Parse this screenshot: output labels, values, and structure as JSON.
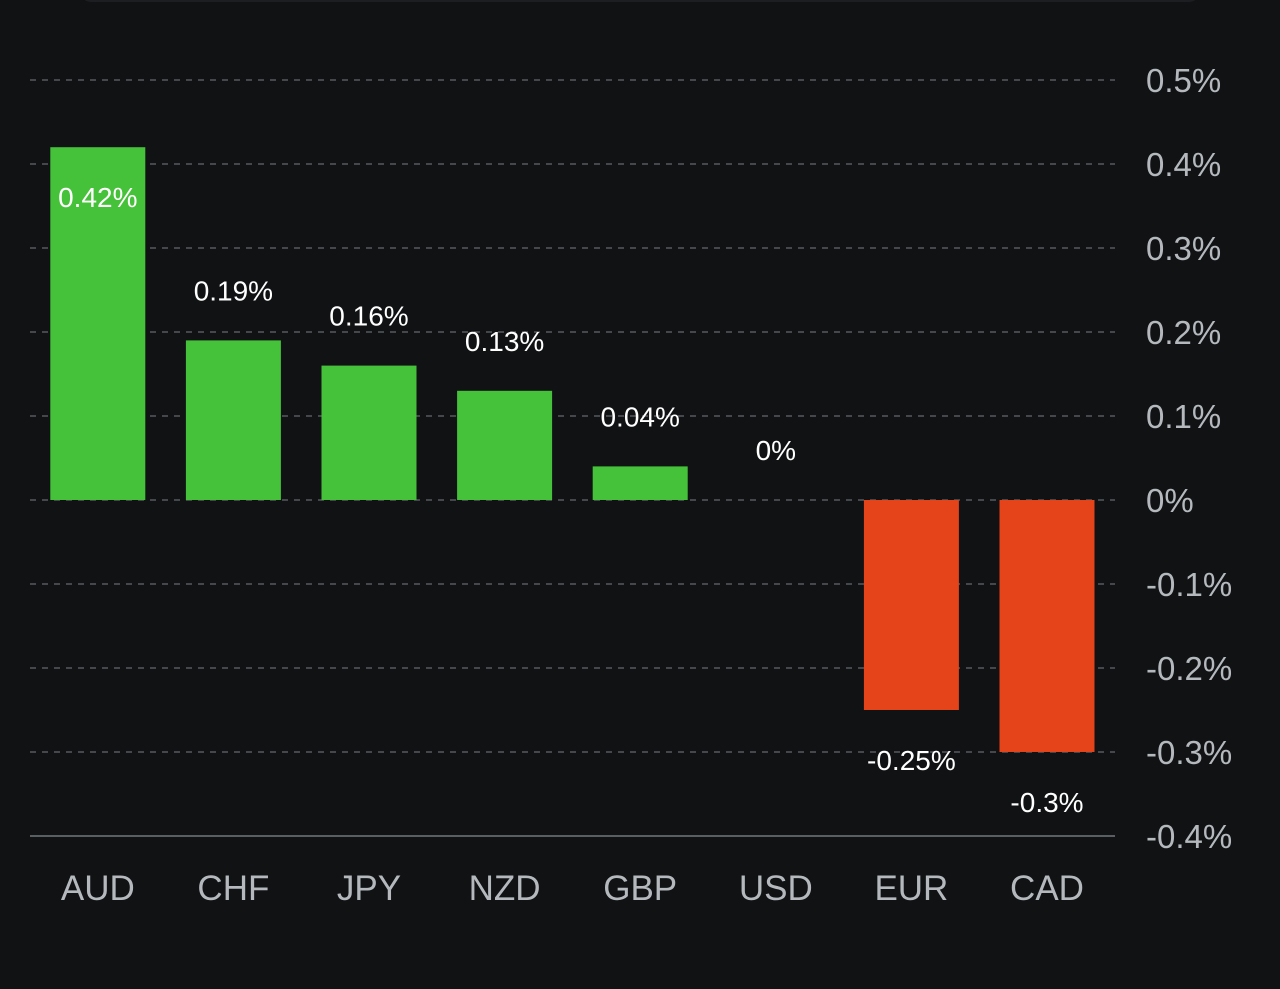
{
  "chart_data": {
    "type": "bar",
    "categories": [
      "AUD",
      "CHF",
      "JPY",
      "NZD",
      "GBP",
      "USD",
      "EUR",
      "CAD"
    ],
    "values": [
      0.42,
      0.19,
      0.16,
      0.13,
      0.04,
      0,
      -0.25,
      -0.3
    ],
    "value_labels": [
      "0.42%",
      "0.19%",
      "0.16%",
      "0.13%",
      "0.04%",
      "0%",
      "-0.25%",
      "-0.3%"
    ],
    "y_ticks": [
      0.5,
      0.4,
      0.3,
      0.2,
      0.1,
      0,
      -0.1,
      -0.2,
      -0.3,
      -0.4
    ],
    "y_tick_labels": [
      "0.5%",
      "0.4%",
      "0.3%",
      "0.2%",
      "0.1%",
      "0%",
      "-0.1%",
      "-0.2%",
      "-0.3%",
      "-0.4%"
    ],
    "ylim": [
      -0.4,
      0.5
    ],
    "grid": true,
    "y_axis_side": "right",
    "title": "",
    "xlabel": "",
    "ylabel": "",
    "colors": {
      "positive": "#45c23a",
      "negative": "#e5431a",
      "background": "#101214",
      "grid": "#55595e",
      "tick_text": "#b5b9bd",
      "value_text": "#ffffff"
    }
  }
}
